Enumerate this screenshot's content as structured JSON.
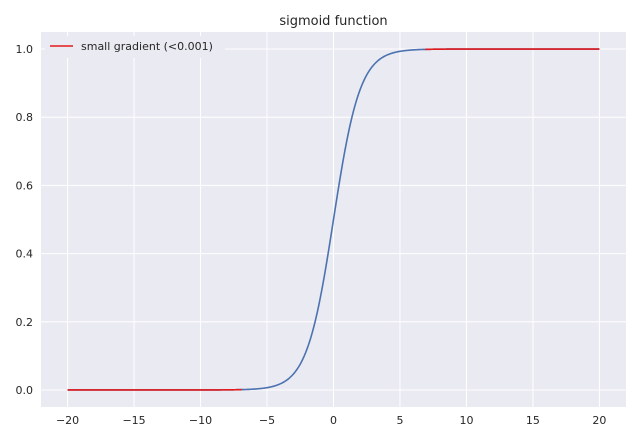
{
  "chart_data": {
    "type": "line",
    "title": "sigmoid function",
    "xlabel": "",
    "ylabel": "",
    "xlim": [
      -22,
      22
    ],
    "ylim": [
      -0.05,
      1.05
    ],
    "x_ticks": [
      -20,
      -15,
      -10,
      -5,
      0,
      5,
      10,
      15,
      20
    ],
    "y_ticks": [
      0.0,
      0.2,
      0.4,
      0.6,
      0.8,
      1.0
    ],
    "x_tick_labels": [
      "−20",
      "−15",
      "−10",
      "−5",
      "0",
      "5",
      "10",
      "15",
      "20"
    ],
    "y_tick_labels": [
      "0.0",
      "0.2",
      "0.4",
      "0.6",
      "0.8",
      "1.0"
    ],
    "grid": true,
    "legend_position": "top-left",
    "series": [
      {
        "function": "sigmoid",
        "color": "#4c72b0",
        "x_range": [
          -20,
          20
        ]
      },
      {
        "name": "small gradient (<0.001)",
        "function": "sigmoid",
        "color": "#e41a1c",
        "segments": [
          [
            -20,
            -6.9
          ],
          [
            6.9,
            20
          ]
        ]
      }
    ]
  }
}
